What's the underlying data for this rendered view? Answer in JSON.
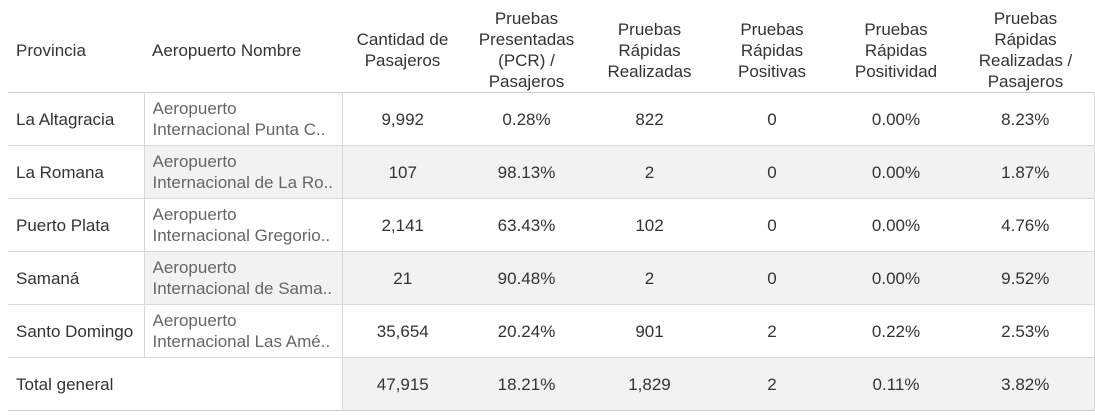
{
  "table": {
    "headers": {
      "provincia": "Provincia",
      "aeropuerto": "Aeropuerto Nombre",
      "pasajeros": [
        "Cantidad de",
        "Pasajeros"
      ],
      "pcr": [
        "Pruebas",
        "Presentadas",
        "(PCR) /",
        "Pasajeros"
      ],
      "rapidas": [
        "Pruebas",
        "Rápidas",
        "Realizadas"
      ],
      "positivas": [
        "Pruebas",
        "Rápidas",
        "Positivas"
      ],
      "positividad": [
        "Pruebas",
        "Rápidas",
        "Positividad"
      ],
      "ratio": [
        "Pruebas",
        "Rápidas",
        "Realizadas /",
        "Pasajeros"
      ]
    },
    "rows": [
      {
        "provincia": "La Altagracia",
        "aeropuerto1": "Aeropuerto",
        "aeropuerto2": "Internacional Punta C..",
        "pasajeros": "9,992",
        "pcr": "0.28%",
        "rapidas": "822",
        "positivas": "0",
        "positividad": "0.00%",
        "ratio": "8.23%"
      },
      {
        "provincia": "La Romana",
        "aeropuerto1": "Aeropuerto",
        "aeropuerto2": "Internacional de La Ro..",
        "pasajeros": "107",
        "pcr": "98.13%",
        "rapidas": "2",
        "positivas": "0",
        "positividad": "0.00%",
        "ratio": "1.87%"
      },
      {
        "provincia": "Puerto Plata",
        "aeropuerto1": "Aeropuerto",
        "aeropuerto2": "Internacional Gregorio..",
        "pasajeros": "2,141",
        "pcr": "63.43%",
        "rapidas": "102",
        "positivas": "0",
        "positividad": "0.00%",
        "ratio": "4.76%"
      },
      {
        "provincia": "Samaná",
        "aeropuerto1": "Aeropuerto",
        "aeropuerto2": "Internacional de Sama..",
        "pasajeros": "21",
        "pcr": "90.48%",
        "rapidas": "2",
        "positivas": "0",
        "positividad": "0.00%",
        "ratio": "9.52%"
      },
      {
        "provincia": "Santo Domingo",
        "aeropuerto1": "Aeropuerto",
        "aeropuerto2": "Internacional Las Amé..",
        "pasajeros": "35,654",
        "pcr": "20.24%",
        "rapidas": "901",
        "positivas": "2",
        "positividad": "0.22%",
        "ratio": "2.53%"
      }
    ],
    "total": {
      "label": "Total general",
      "pasajeros": "47,915",
      "pcr": "18.21%",
      "rapidas": "1,829",
      "positivas": "2",
      "positividad": "0.11%",
      "ratio": "3.82%"
    }
  }
}
